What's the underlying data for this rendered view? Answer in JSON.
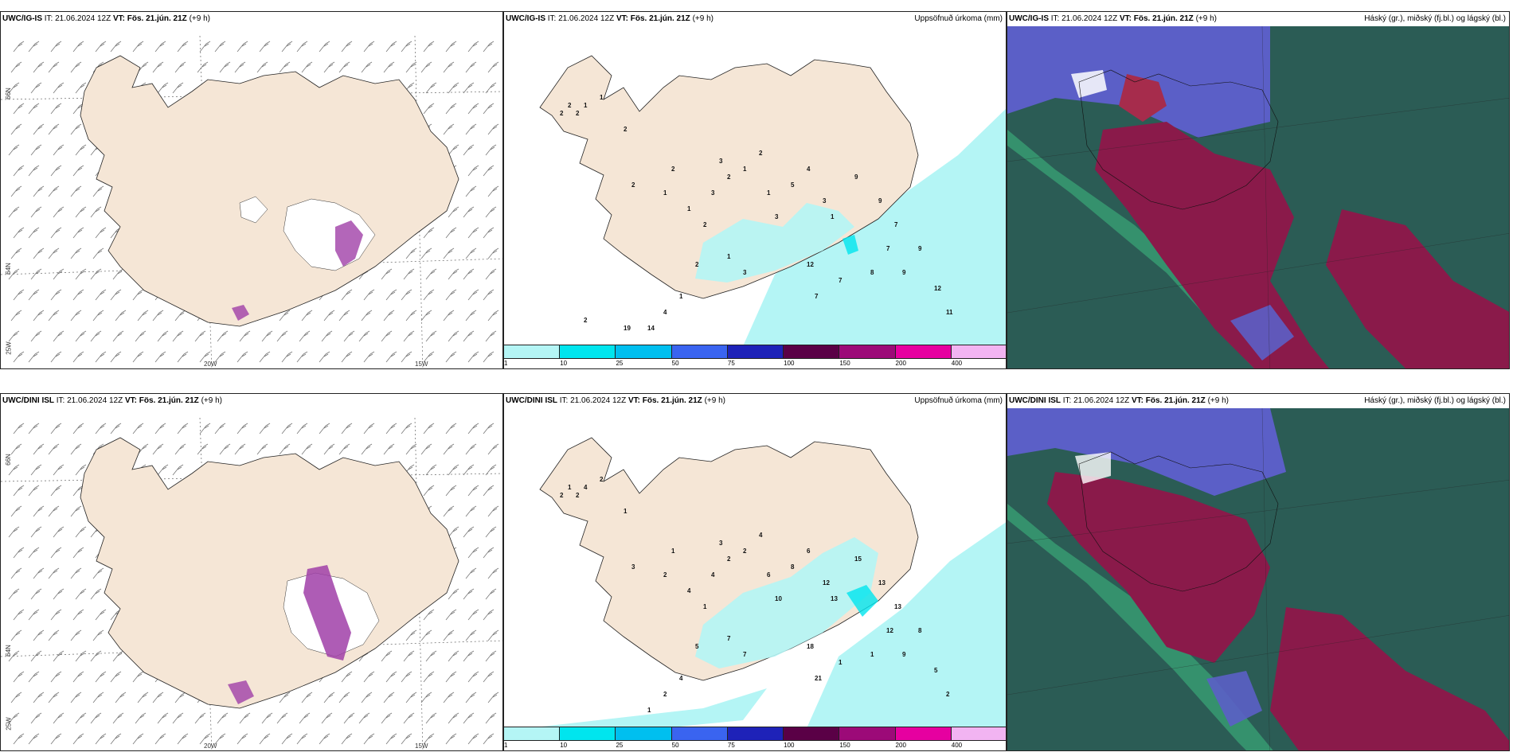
{
  "top_row": {
    "left": {
      "model": "UWC/IG-IS",
      "it_label": "IT:",
      "it_value": "21.06.2024 12Z",
      "vt_label": "VT: Fös. 21.jún. 21Z",
      "lead": "(+9 h)",
      "axis_labels": {
        "lat_upper": "66N",
        "lat_lower": "64N",
        "lon_left": "20W",
        "lon_right": "15W",
        "corner": "25W"
      }
    },
    "middle": {
      "model": "UWC/IG-IS",
      "it_label": "IT:",
      "it_value": "21.06.2024 12Z",
      "vt_label": "VT: Fös. 21.jún. 21Z",
      "lead": "(+9 h)",
      "field": "Uppsöfnuð úrkoma (mm)",
      "precip_numbers": [
        "2",
        "2",
        "2",
        "1",
        "1",
        "2",
        "2",
        "1",
        "2",
        "1",
        "3",
        "2",
        "2",
        "3",
        "1",
        "2",
        "1",
        "3",
        "5",
        "4",
        "3",
        "1",
        "9",
        "9",
        "7",
        "7",
        "9",
        "9",
        "12",
        "11",
        "8",
        "7",
        "7",
        "12",
        "3",
        "1",
        "2",
        "1",
        "4",
        "14",
        "19",
        "2"
      ]
    },
    "right": {
      "model": "UWC/IG-IS",
      "it_label": "IT:",
      "it_value": "21.06.2024 12Z",
      "vt_label": "VT: Fös. 21.jún. 21Z",
      "lead": "(+9 h)",
      "field": "Háský (gr.), miðský (fj.bl.) og lágský (bl.)"
    }
  },
  "bottom_row": {
    "left": {
      "model": "UWC/DINI ISL",
      "it_label": "IT:",
      "it_value": "21.06.2024 12Z",
      "vt_label": "VT: Fös. 21.jún. 21Z",
      "lead": "(+9 h)",
      "axis_labels": {
        "lat_upper": "66N",
        "lat_lower": "64N",
        "lon_left": "20W",
        "lon_right": "15W",
        "corner": "25W"
      }
    },
    "middle": {
      "model": "UWC/DINI ISL",
      "it_label": "IT:",
      "it_value": "21.06.2024 12Z",
      "vt_label": "VT: Fös. 21.jún. 21Z",
      "lead": "(+9 h)",
      "field": "Uppsöfnuð úrkoma (mm)",
      "precip_numbers": [
        "2",
        "1",
        "2",
        "4",
        "2",
        "1",
        "3",
        "2",
        "1",
        "4",
        "3",
        "2",
        "1",
        "4",
        "2",
        "4",
        "6",
        "10",
        "8",
        "6",
        "12",
        "13",
        "15",
        "13",
        "13",
        "12",
        "9",
        "8",
        "5",
        "2",
        "1",
        "1",
        "21",
        "18",
        "7",
        "7",
        "5",
        "4",
        "2",
        "1"
      ]
    },
    "right": {
      "model": "UWC/DINI ISL",
      "it_label": "IT:",
      "it_value": "21.06.2024 12Z",
      "vt_label": "VT: Fös. 21.jún. 21Z",
      "lead": "(+9 h)",
      "field": "Háský (gr.), miðský (fj.bl.) og lágský (bl.)"
    }
  },
  "colorbar": {
    "ticks": [
      "1",
      "10",
      "25",
      "50",
      "75",
      "100",
      "150",
      "200",
      "400"
    ],
    "colors": [
      "#b4f5f5",
      "#00e5ee",
      "#00bfef",
      "#3a64f0",
      "#1e22b8",
      "#5a0046",
      "#9c0a78",
      "#e600a0",
      "#f2b4f2"
    ]
  },
  "colors": {
    "land": "#f5e6d6",
    "land_glacier": "#ffffff",
    "precip_light": "#b4f5f5",
    "cloud_high": "#2b5c55",
    "cloud_mid": "#5b5fc7",
    "cloud_low": "#8a1a4a",
    "frame": "#222222"
  }
}
